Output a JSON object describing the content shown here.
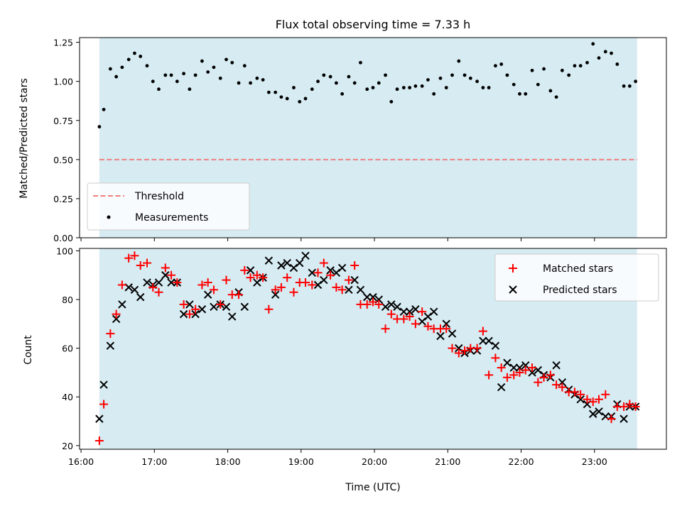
{
  "chart_data": [
    {
      "type": "scatter",
      "title": "Flux total observing time = 7.33 h",
      "xlabel": "",
      "ylabel": "Matched/Predicted stars",
      "xlim": [
        15.98,
        23.98
      ],
      "ylim": [
        0.0,
        1.28
      ],
      "yticks": [
        0.0,
        0.25,
        0.5,
        0.75,
        1.0,
        1.25
      ],
      "xticks": [
        "16:00",
        "17:00",
        "18:00",
        "19:00",
        "20:00",
        "21:00",
        "22:00",
        "23:00"
      ],
      "shaded_span": [
        16.25,
        23.58
      ],
      "shade_color": "#add8e6",
      "threshold": {
        "name": "Threshold",
        "value": 0.5,
        "color": "#f08080",
        "style": "dashed"
      },
      "legend_position": "lower-left",
      "series": [
        {
          "name": "Measurements",
          "color": "#000000",
          "marker": "dot",
          "x": [
            16.25,
            16.31,
            16.4,
            16.48,
            16.56,
            16.65,
            16.73,
            16.81,
            16.9,
            16.98,
            17.06,
            17.15,
            17.23,
            17.31,
            17.4,
            17.48,
            17.56,
            17.65,
            17.73,
            17.81,
            17.9,
            17.98,
            18.06,
            18.15,
            18.23,
            18.31,
            18.4,
            18.48,
            18.56,
            18.65,
            18.73,
            18.81,
            18.9,
            18.98,
            19.06,
            19.15,
            19.23,
            19.31,
            19.4,
            19.48,
            19.56,
            19.65,
            19.73,
            19.81,
            19.9,
            19.98,
            20.06,
            20.15,
            20.23,
            20.31,
            20.4,
            20.48,
            20.56,
            20.65,
            20.73,
            20.81,
            20.9,
            20.98,
            21.06,
            21.15,
            21.23,
            21.31,
            21.4,
            21.48,
            21.56,
            21.65,
            21.73,
            21.81,
            21.9,
            21.98,
            22.06,
            22.15,
            22.23,
            22.31,
            22.4,
            22.48,
            22.56,
            22.65,
            22.73,
            22.81,
            22.9,
            22.98,
            23.06,
            23.15,
            23.23,
            23.31,
            23.4,
            23.48,
            23.56
          ],
          "values": [
            0.71,
            0.82,
            1.08,
            1.03,
            1.09,
            1.14,
            1.18,
            1.16,
            1.1,
            1.0,
            0.95,
            1.04,
            1.04,
            1.0,
            1.05,
            0.95,
            1.04,
            1.13,
            1.06,
            1.09,
            1.02,
            1.14,
            1.12,
            0.99,
            1.1,
            0.99,
            1.02,
            1.01,
            0.93,
            0.93,
            0.9,
            0.89,
            0.96,
            0.87,
            0.89,
            0.95,
            1.0,
            1.04,
            1.03,
            0.99,
            0.92,
            1.03,
            0.99,
            1.12,
            0.95,
            0.96,
            0.99,
            1.04,
            0.87,
            0.95,
            0.96,
            0.96,
            0.97,
            0.97,
            1.01,
            0.92,
            1.02,
            0.96,
            1.04,
            1.13,
            1.04,
            1.02,
            1.0,
            0.96,
            0.96,
            1.1,
            1.11,
            1.04,
            0.98,
            0.92,
            0.92,
            1.07,
            0.98,
            1.08,
            0.94,
            0.9,
            1.07,
            1.04,
            1.1,
            1.1,
            1.12,
            1.24,
            1.15,
            1.19,
            1.18,
            1.11,
            0.97,
            0.97,
            1.0
          ]
        }
      ]
    },
    {
      "type": "scatter",
      "title": "",
      "xlabel": "Time (UTC)",
      "ylabel": "Count",
      "xlim": [
        15.98,
        23.98
      ],
      "ylim": [
        18.5,
        101
      ],
      "yticks": [
        20,
        40,
        60,
        80,
        100
      ],
      "xticks": [
        "16:00",
        "17:00",
        "18:00",
        "19:00",
        "20:00",
        "21:00",
        "22:00",
        "23:00"
      ],
      "shaded_span": [
        16.25,
        23.58
      ],
      "shade_color": "#add8e6",
      "legend_position": "upper-right",
      "x": [
        16.25,
        16.31,
        16.4,
        16.48,
        16.56,
        16.65,
        16.73,
        16.81,
        16.9,
        16.98,
        17.06,
        17.15,
        17.23,
        17.31,
        17.4,
        17.48,
        17.56,
        17.65,
        17.73,
        17.81,
        17.9,
        17.98,
        18.06,
        18.15,
        18.23,
        18.31,
        18.4,
        18.48,
        18.56,
        18.65,
        18.73,
        18.81,
        18.9,
        18.98,
        19.06,
        19.15,
        19.23,
        19.31,
        19.4,
        19.48,
        19.56,
        19.65,
        19.73,
        19.81,
        19.9,
        19.98,
        20.06,
        20.15,
        20.23,
        20.31,
        20.4,
        20.48,
        20.56,
        20.65,
        20.73,
        20.81,
        20.9,
        20.98,
        21.06,
        21.15,
        21.23,
        21.31,
        21.4,
        21.48,
        21.56,
        21.65,
        21.73,
        21.81,
        21.9,
        21.98,
        22.06,
        22.15,
        22.23,
        22.31,
        22.4,
        22.48,
        22.56,
        22.65,
        22.73,
        22.81,
        22.9,
        22.98,
        23.06,
        23.15,
        23.23,
        23.31,
        23.4,
        23.48,
        23.56
      ],
      "series": [
        {
          "name": "Matched stars",
          "color": "#ff0000",
          "marker": "plus",
          "values": [
            22,
            37,
            66,
            74,
            86,
            97,
            98,
            94,
            95,
            85,
            83,
            93,
            90,
            87,
            78,
            74,
            76,
            86,
            87,
            84,
            78,
            88,
            82,
            82,
            92,
            89,
            90,
            89,
            76,
            84,
            85,
            89,
            83,
            87,
            87,
            86,
            91,
            95,
            90,
            85,
            84,
            88,
            94,
            78,
            78,
            79,
            78,
            68,
            74,
            72,
            72,
            73,
            70,
            75,
            69,
            68,
            68,
            68,
            60,
            58,
            59,
            60,
            60,
            67,
            49,
            56,
            52,
            48,
            49,
            50,
            51,
            52,
            46,
            48,
            49,
            45,
            44,
            42,
            42,
            41,
            39,
            38,
            39,
            41,
            31,
            36,
            36,
            37,
            36
          ]
        },
        {
          "name": "Predicted stars",
          "color": "#000000",
          "marker": "x",
          "values": [
            31,
            45,
            61,
            72,
            78,
            85,
            84,
            81,
            87,
            86,
            87,
            90,
            87,
            87,
            74,
            78,
            74,
            76,
            82,
            77,
            78,
            77,
            73,
            83,
            77,
            92,
            87,
            89,
            96,
            82,
            94,
            95,
            93,
            95,
            98,
            91,
            86,
            88,
            92,
            91,
            93,
            84,
            88,
            84,
            81,
            81,
            80,
            77,
            78,
            77,
            75,
            75,
            76,
            71,
            73,
            75,
            65,
            70,
            66,
            60,
            58,
            59,
            59,
            63,
            63,
            61,
            44,
            54,
            52,
            52,
            53,
            50,
            51,
            49,
            48,
            53,
            46,
            43,
            41,
            39,
            37,
            33,
            34,
            32,
            32,
            37,
            31,
            36,
            36
          ]
        }
      ]
    }
  ]
}
